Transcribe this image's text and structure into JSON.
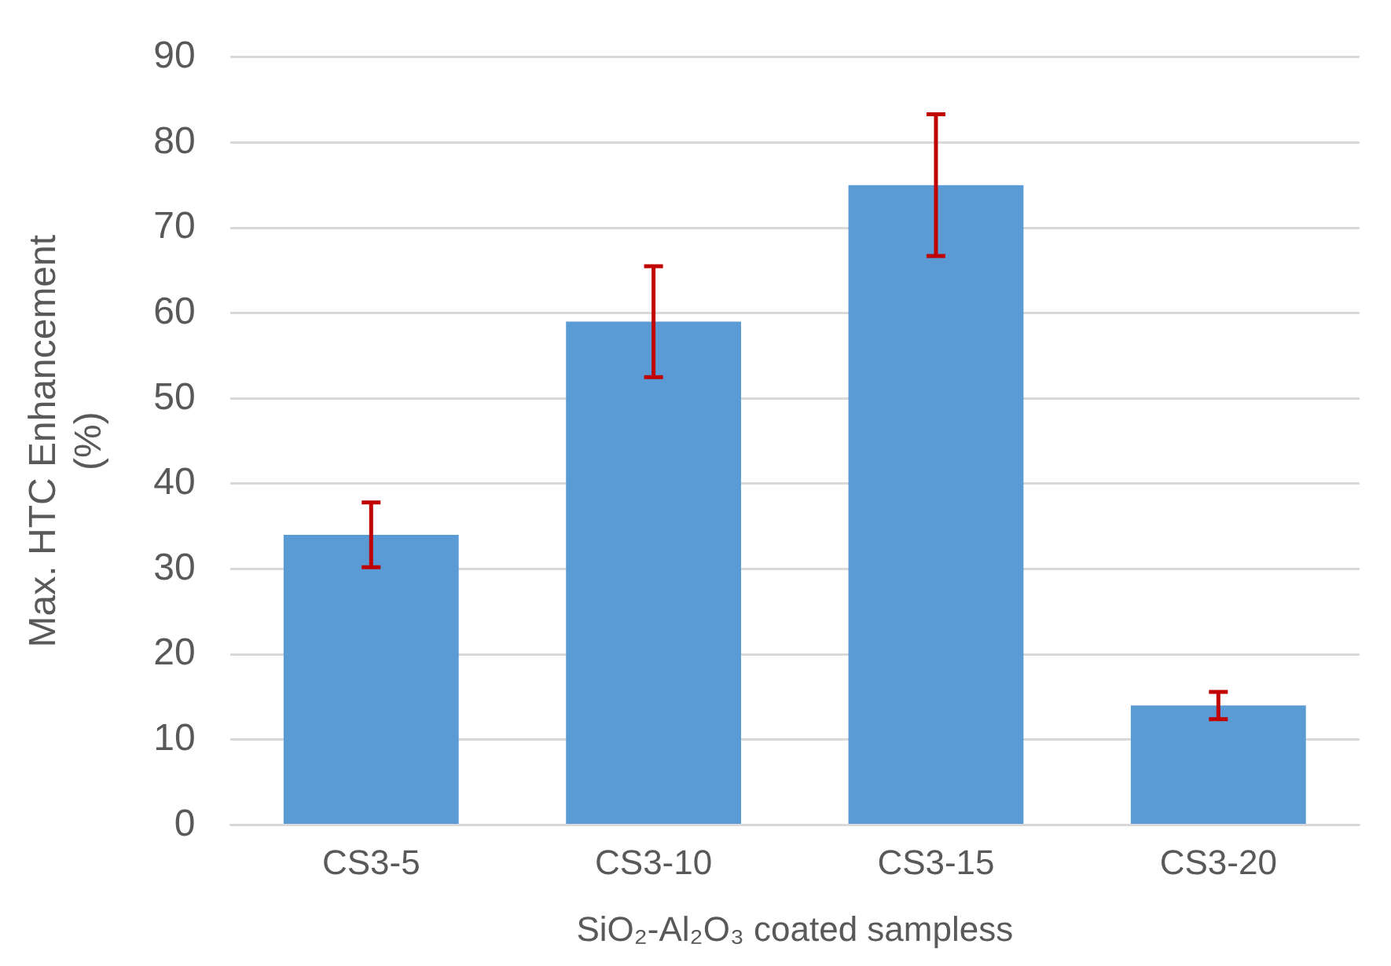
{
  "chart_data": {
    "type": "bar",
    "xlabel": "SiO₂-Al₂O₃ coated sampless",
    "ylabel": "Max. HTC Enhancement (%)",
    "categories": [
      "CS3-5",
      "CS3-10",
      "CS3-15",
      "CS3-20"
    ],
    "values": [
      34,
      59,
      75,
      14
    ],
    "errors": [
      3.8,
      6.5,
      8.3,
      1.6
    ],
    "color": "#5b9bd5",
    "ylim": [
      0,
      90
    ],
    "yticks": [
      0,
      10,
      20,
      30,
      40,
      50,
      60,
      70,
      80,
      90
    ],
    "grid": "y",
    "legend": false
  }
}
